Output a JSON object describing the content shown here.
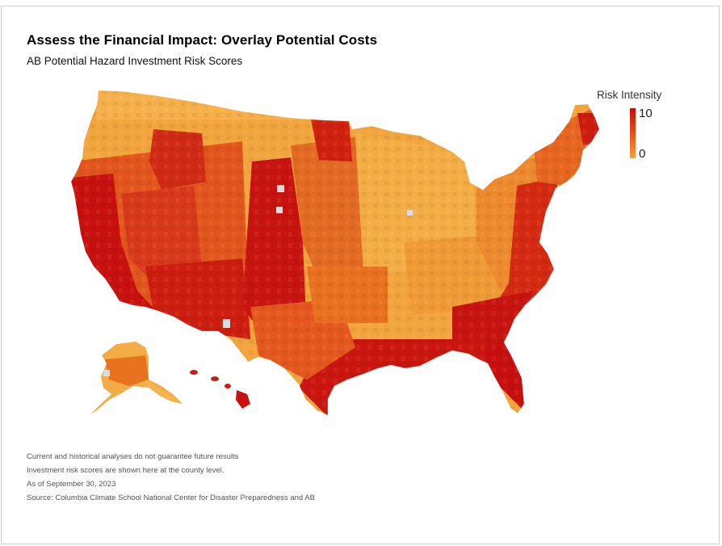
{
  "header": {
    "title": "Assess the Financial Impact: Overlay Potential Costs",
    "subtitle": "AB Potential Hazard Investment Risk Scores"
  },
  "legend": {
    "title": "Risk Intensity",
    "max_label": "10",
    "min_label": "0",
    "colors": {
      "high": "#c40d0d",
      "mid": "#e04a16",
      "low": "#f4a33c",
      "no_data": "#d9dde0"
    }
  },
  "map": {
    "level": "county",
    "regions": [
      "contiguous-us",
      "alaska",
      "hawaii"
    ]
  },
  "notes": [
    "Current and historical analyses do not guarantee future results",
    "Investment risk scores are shown here at the county level.",
    "As of September 30, 2023",
    "Source: Columbia Climate School National Center for Disaster Preparedness and AB"
  ]
}
